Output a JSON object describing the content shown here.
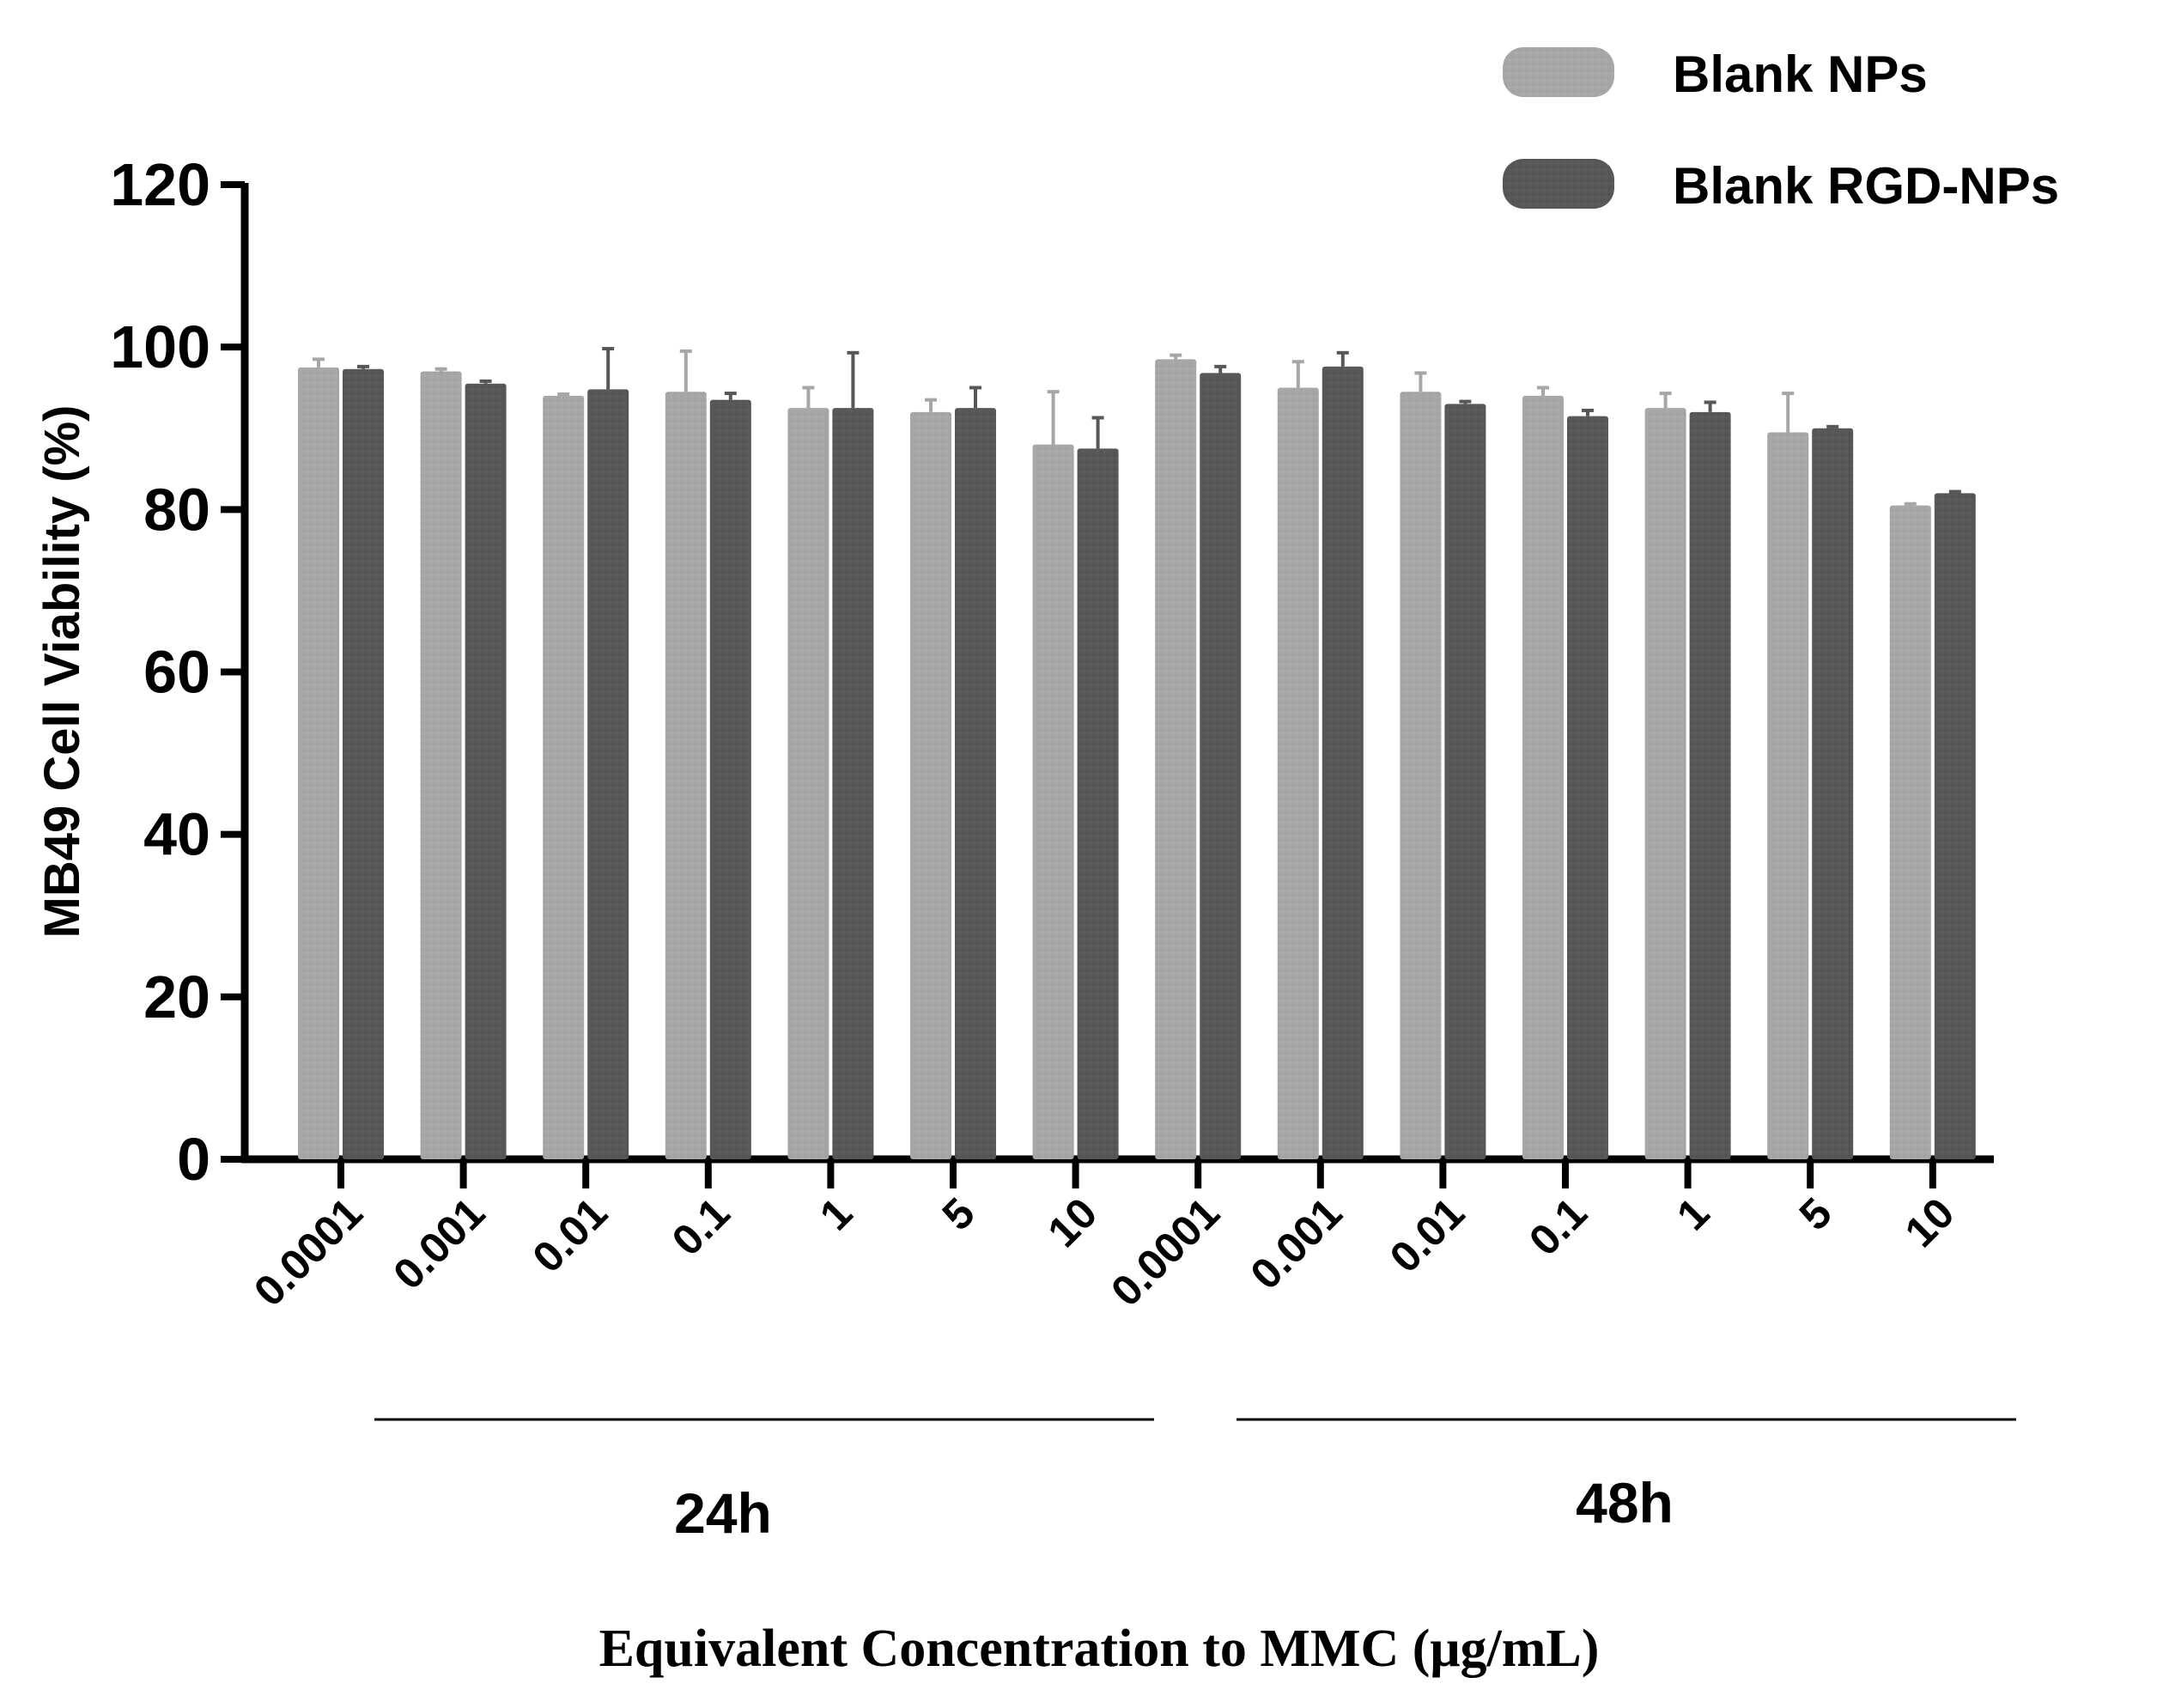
{
  "chart_data": {
    "type": "bar",
    "ylabel": "MB49 Cell Viability (%)",
    "xlabel": "Equivalent Concentration to MMC (μg/mL)",
    "ylim": [
      0,
      120
    ],
    "yticks": [
      0,
      20,
      40,
      60,
      80,
      100,
      120
    ],
    "legend_position": "top-right",
    "categories": [
      "0.0001",
      "0.001",
      "0.01",
      "0.1",
      "1",
      "5",
      "10",
      "0.0001",
      "0.001",
      "0.01",
      "0.1",
      "1",
      "5",
      "10"
    ],
    "groups": [
      {
        "label": "24h",
        "start": 0,
        "end": 6
      },
      {
        "label": "48h",
        "start": 7,
        "end": 13
      }
    ],
    "series": [
      {
        "name": "Blank NPs",
        "color": "#a6a6a6",
        "values": [
          97.5,
          97.0,
          94.0,
          94.5,
          92.5,
          92.0,
          88.0,
          98.5,
          95.0,
          94.5,
          94.0,
          92.5,
          89.5,
          80.5
        ],
        "errors": [
          1.0,
          0.3,
          0.2,
          5.0,
          2.5,
          1.5,
          6.5,
          0.5,
          3.2,
          2.3,
          1.0,
          1.8,
          4.8,
          0.2
        ]
      },
      {
        "name": "Blank RGD-NPs",
        "color": "#575757",
        "values": [
          97.3,
          95.5,
          94.8,
          93.5,
          92.5,
          92.5,
          87.5,
          96.8,
          97.6,
          93.0,
          91.5,
          92.0,
          90.0,
          82.0
        ],
        "errors": [
          0.3,
          0.3,
          5.0,
          0.8,
          6.8,
          2.5,
          3.8,
          0.8,
          1.7,
          0.3,
          0.7,
          1.2,
          0.2,
          0.2
        ]
      }
    ]
  }
}
